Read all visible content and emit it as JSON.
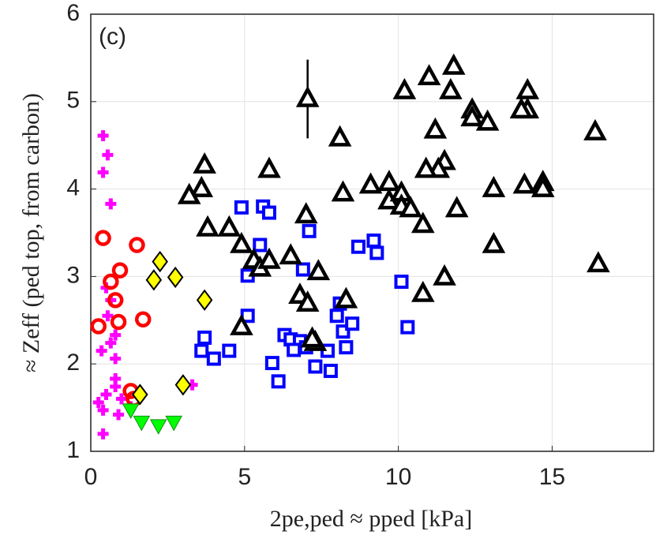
{
  "chart_data": {
    "type": "scatter",
    "annotation": "(c)",
    "x_label": "2pe,ped ≈ pped [kPa]",
    "y_label": "≈ Zeff (ped top, from carbon)",
    "xlim": [
      0,
      18.3
    ],
    "ylim": [
      1,
      6
    ],
    "xticks": [
      0,
      5,
      10,
      15
    ],
    "yticks": [
      1,
      2,
      3,
      4,
      5,
      6
    ],
    "grid": true,
    "series": [
      {
        "color": "#ff00ff",
        "marker": "plus",
        "x": [
          0.4,
          0.55,
          0.4,
          0.65,
          0.5,
          0.65,
          0.55,
          0.8,
          0.65,
          0.35,
          0.8,
          0.8,
          0.5,
          0.25,
          0.4,
          0.8,
          1.0,
          1.3,
          0.9,
          0.4,
          3.3
        ],
        "values": [
          4.61,
          4.39,
          4.19,
          3.83,
          2.87,
          2.73,
          2.55,
          2.33,
          2.24,
          2.15,
          2.06,
          1.83,
          1.65,
          1.56,
          1.47,
          1.74,
          1.6,
          1.51,
          1.42,
          1.2,
          1.76
        ]
      },
      {
        "color": "#ff0000",
        "marker": "circle",
        "x": [
          0.4,
          1.5,
          0.95,
          0.65,
          0.8,
          0.9,
          1.7,
          0.25,
          1.3,
          1.4
        ],
        "values": [
          3.44,
          3.36,
          3.07,
          2.94,
          2.73,
          2.48,
          2.51,
          2.43,
          1.69,
          1.6
        ]
      },
      {
        "color": "#00ff00",
        "marker": "down-triangle",
        "x": [
          1.65,
          2.2,
          2.7,
          1.3
        ],
        "values": [
          1.33,
          1.29,
          1.33,
          1.47
        ]
      },
      {
        "color": "#ffff00",
        "marker": "diamond",
        "x": [
          2.25,
          2.05,
          2.75,
          3.7,
          3.0,
          1.6
        ],
        "values": [
          3.17,
          2.96,
          2.99,
          2.73,
          1.76,
          1.65
        ]
      },
      {
        "color": "#0000ff",
        "marker": "square",
        "x": [
          4.9,
          5.6,
          5.8,
          7.1,
          5.5,
          5.1,
          6.9,
          8.7,
          9.2,
          9.3,
          10.1,
          5.1,
          3.7,
          3.6,
          4.0,
          4.5,
          6.3,
          6.5,
          6.8,
          5.9,
          6.1,
          7.3,
          7.8,
          8.1,
          8.0,
          8.2,
          8.3,
          8.5,
          10.3,
          6.6,
          7.0,
          7.7
        ],
        "values": [
          3.79,
          3.8,
          3.73,
          3.52,
          3.36,
          3.01,
          3.08,
          3.34,
          3.41,
          3.27,
          2.94,
          2.55,
          2.3,
          2.15,
          2.06,
          2.15,
          2.33,
          2.28,
          2.26,
          2.01,
          1.8,
          1.97,
          1.92,
          2.69,
          2.55,
          2.37,
          2.19,
          2.46,
          2.42,
          2.16,
          2.19,
          2.15
        ]
      },
      {
        "color": "#000000",
        "marker": "triangle",
        "x": [
          7.05,
          11.8,
          11.0,
          10.2,
          11.7,
          14.2,
          14.2,
          12.4,
          12.4,
          12.9,
          14.0,
          8.1,
          11.2,
          16.4,
          11.5,
          11.3,
          10.9,
          5.8,
          3.7,
          3.6,
          3.2,
          8.2,
          9.1,
          9.7,
          9.7,
          10.1,
          10.1,
          10.4,
          13.1,
          14.1,
          14.7,
          14.7,
          11.9,
          7.0,
          3.8,
          4.5,
          10.8,
          13.1,
          16.5,
          4.9,
          5.3,
          5.5,
          5.8,
          6.5,
          7.4,
          11.5,
          6.8,
          7.05,
          8.3,
          10.8,
          4.9,
          7.3,
          7.2
        ],
        "values": [
          5.03,
          5.4,
          5.28,
          5.12,
          5.12,
          5.12,
          4.9,
          4.9,
          4.81,
          4.76,
          4.9,
          4.58,
          4.67,
          4.65,
          4.31,
          4.22,
          4.22,
          4.22,
          4.27,
          4.0,
          3.92,
          3.95,
          4.04,
          4.07,
          3.86,
          3.95,
          3.8,
          3.77,
          4.0,
          4.04,
          4.07,
          4.0,
          3.77,
          3.7,
          3.55,
          3.55,
          3.59,
          3.36,
          3.14,
          3.36,
          3.18,
          3.09,
          3.18,
          3.23,
          3.05,
          2.99,
          2.78,
          2.69,
          2.73,
          2.8,
          2.42,
          2.24,
          2.28
        ],
        "yerr": [
          0.45,
          null,
          null,
          null,
          null,
          null,
          null,
          null,
          null,
          null,
          null,
          null,
          null,
          null,
          null,
          null,
          null,
          null,
          null,
          null,
          null,
          null,
          null,
          null,
          null,
          null,
          null,
          null,
          null,
          null,
          null,
          null,
          null,
          null,
          null,
          null,
          null,
          null,
          null,
          null,
          null,
          null,
          null,
          null,
          null,
          null,
          null,
          null,
          null,
          null,
          null,
          null,
          null
        ]
      }
    ]
  }
}
